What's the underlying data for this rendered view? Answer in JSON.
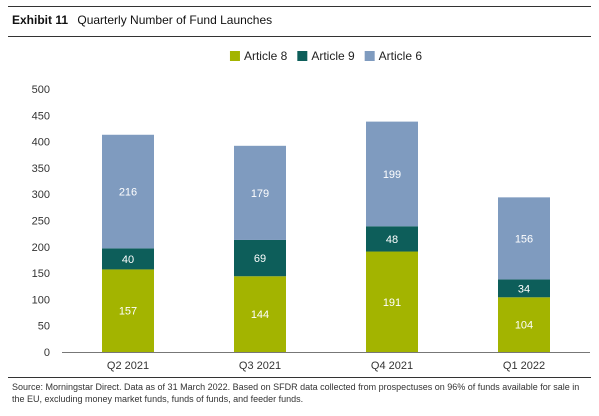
{
  "header": {
    "exhibit": "Exhibit 11",
    "title": "Quarterly Number of Fund Launches"
  },
  "chart_data": {
    "type": "bar",
    "stacked": true,
    "categories": [
      "Q2 2021",
      "Q3 2021",
      "Q4 2021",
      "Q1 2022"
    ],
    "series": [
      {
        "name": "Article 8",
        "color": "#a3b400",
        "values": [
          157,
          144,
          191,
          104
        ]
      },
      {
        "name": "Article 9",
        "color": "#0d5e5a",
        "values": [
          40,
          69,
          48,
          34
        ]
      },
      {
        "name": "Article 6",
        "color": "#7f9bbf",
        "values": [
          216,
          179,
          199,
          156
        ]
      }
    ],
    "ylim": [
      0,
      500
    ],
    "yticks": [
      0,
      50,
      100,
      150,
      200,
      250,
      300,
      350,
      400,
      450,
      500
    ],
    "legend": "top-center",
    "grid": false,
    "data_labels": true
  },
  "source": "Source: Morningstar Direct. Data as of 31 March 2022. Based on SFDR data collected from prospectuses on 96% of funds available for sale in the EU, excluding money market funds, funds of funds, and feeder funds."
}
